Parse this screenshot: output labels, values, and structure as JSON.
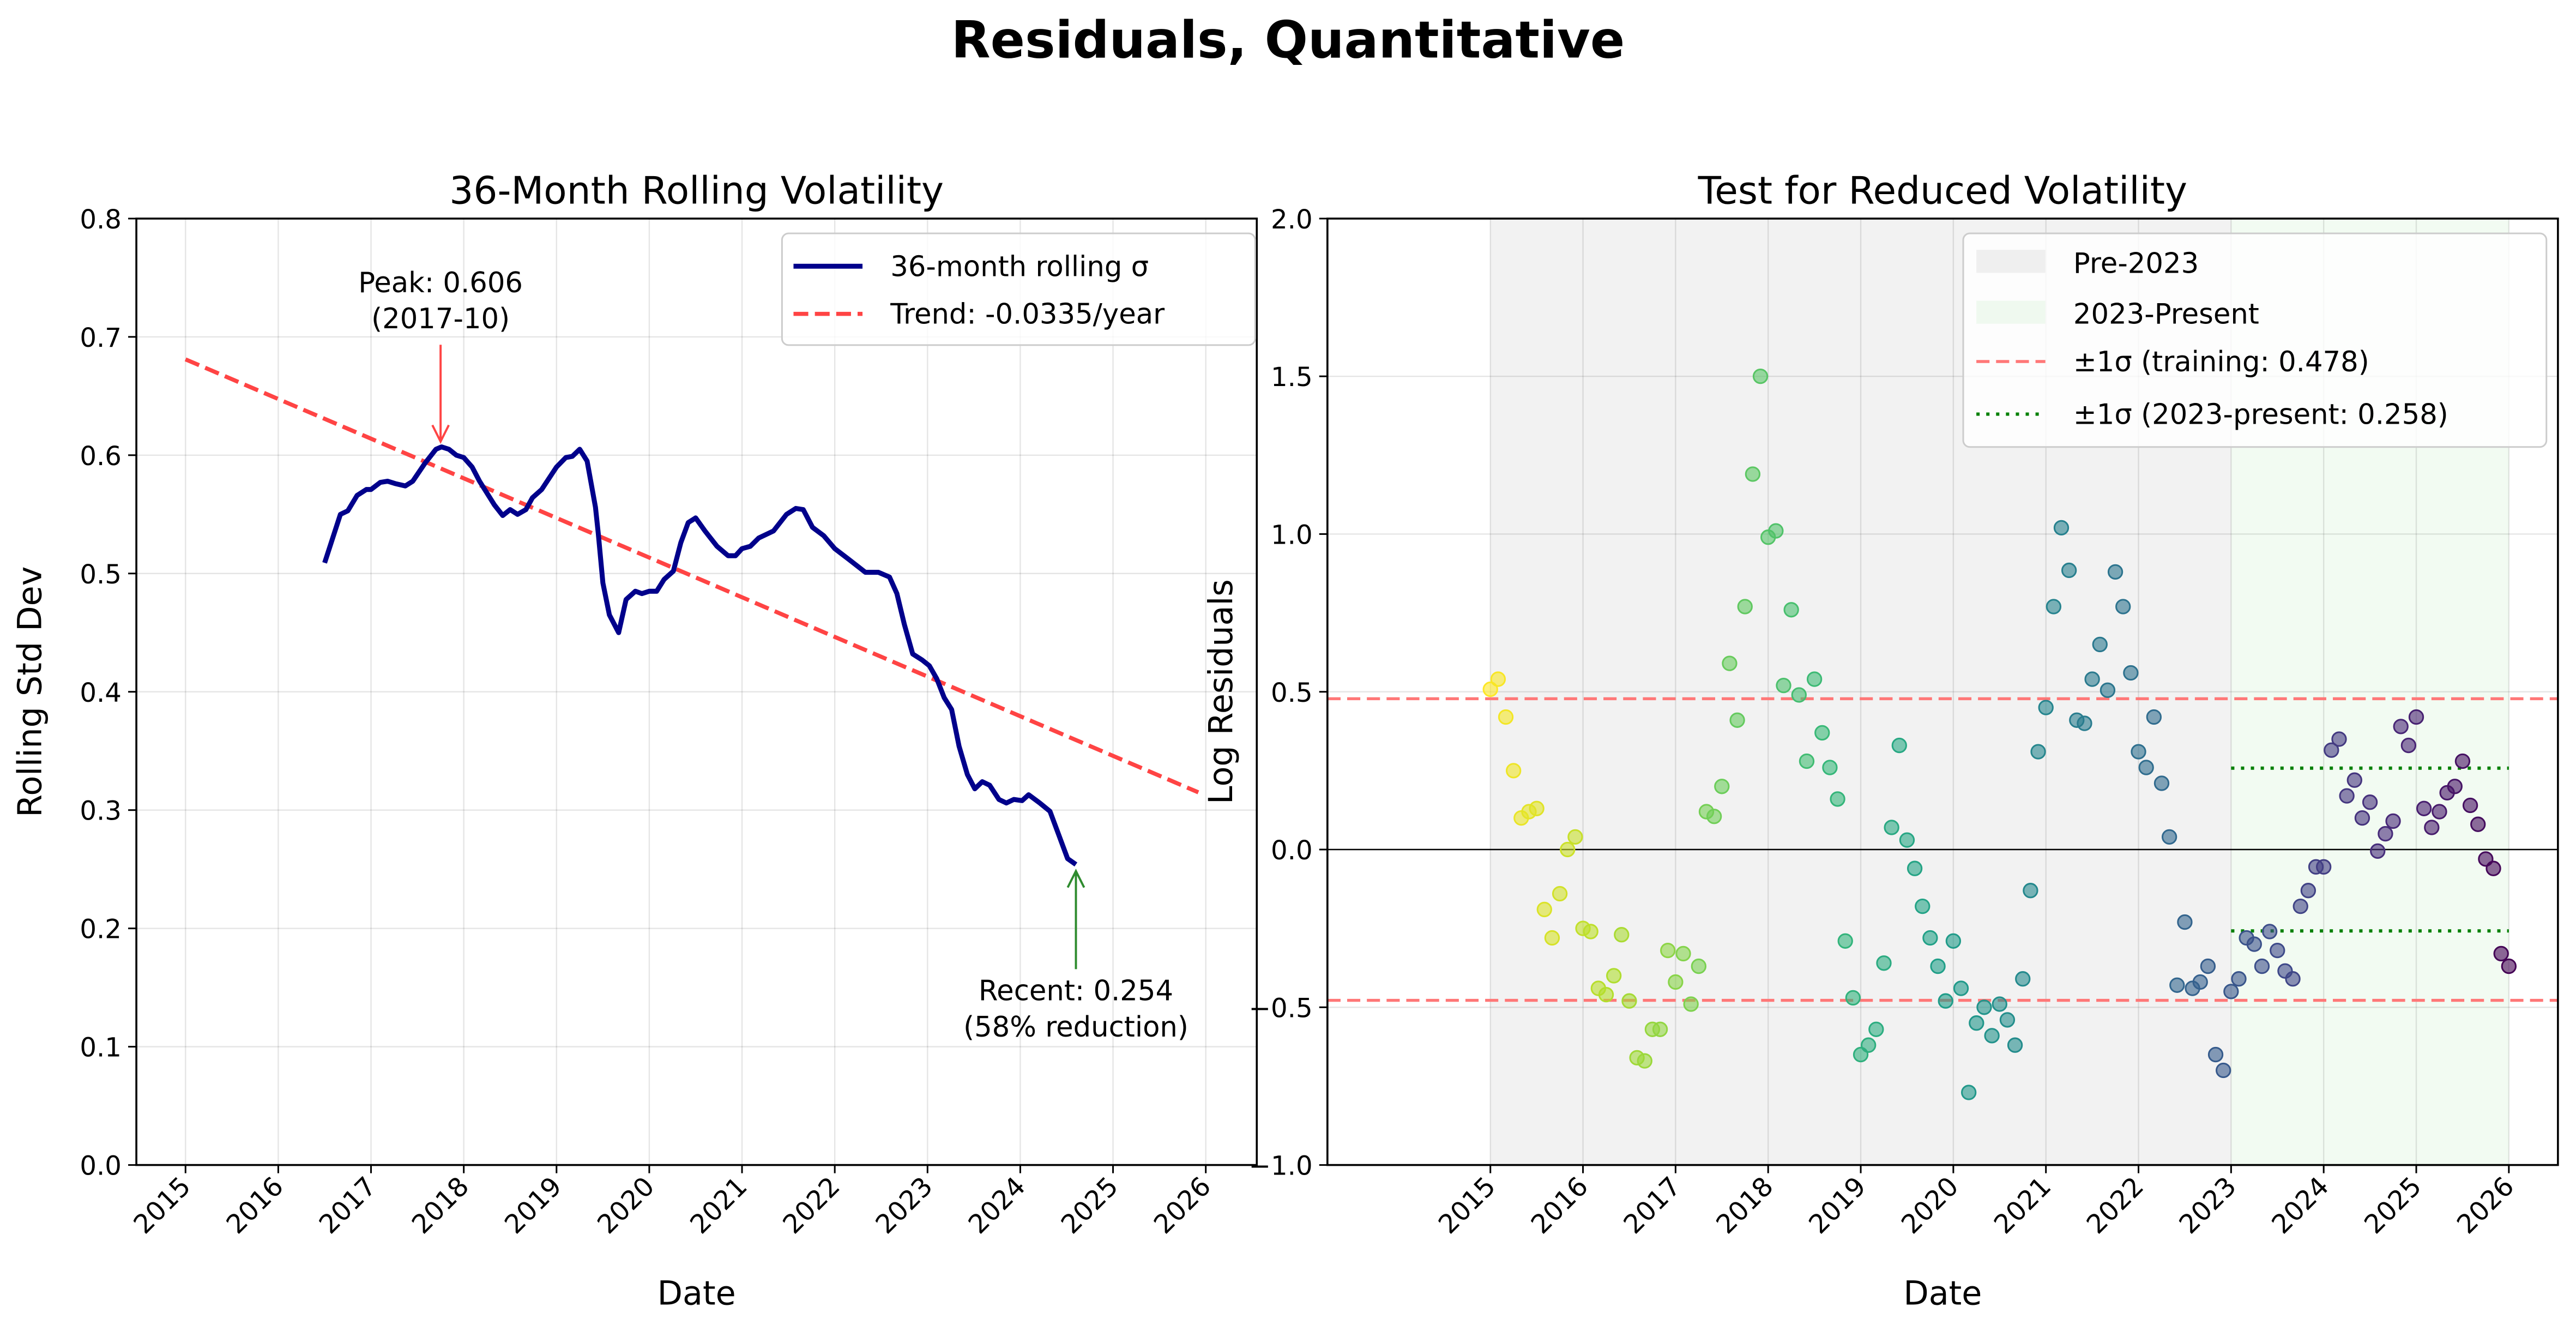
{
  "suptitle": "Residuals, Quantitative",
  "chart_data": [
    {
      "type": "line",
      "title": "36-Month Rolling Volatility",
      "xlabel": "Date",
      "ylabel": "Rolling Std Dev",
      "xlim": [
        2014.47,
        2026.55
      ],
      "ylim": [
        0,
        0.8
      ],
      "xticks": [
        "2015",
        "2016",
        "2017",
        "2018",
        "2019",
        "2020",
        "2021",
        "2022",
        "2023",
        "2024",
        "2025",
        "2026"
      ],
      "yticks": [
        "0.0",
        "0.1",
        "0.2",
        "0.3",
        "0.4",
        "0.5",
        "0.6",
        "0.7",
        "0.8"
      ],
      "grid": true,
      "legend_position": "top-right",
      "series": [
        {
          "name": "36-month rolling σ",
          "color": "#00008b",
          "x": [
            2016.5,
            2016.67,
            2016.75,
            2016.85,
            2016.95,
            2017.0,
            2017.1,
            2017.18,
            2017.26,
            2017.37,
            2017.45,
            2017.58,
            2017.7,
            2017.76,
            2017.84,
            2017.92,
            2018.0,
            2018.09,
            2018.17,
            2018.33,
            2018.42,
            2018.5,
            2018.58,
            2018.67,
            2018.74,
            2018.84,
            2019.0,
            2019.1,
            2019.17,
            2019.25,
            2019.33,
            2019.42,
            2019.45,
            2019.5,
            2019.57,
            2019.67,
            2019.75,
            2019.85,
            2019.92,
            2020.0,
            2020.08,
            2020.16,
            2020.26,
            2020.34,
            2020.42,
            2020.5,
            2020.6,
            2020.73,
            2020.85,
            2020.93,
            2021.0,
            2021.09,
            2021.18,
            2021.34,
            2021.48,
            2021.58,
            2021.66,
            2021.76,
            2021.88,
            2022.0,
            2022.15,
            2022.33,
            2022.47,
            2022.59,
            2022.67,
            2022.75,
            2022.84,
            2022.94,
            2023.02,
            2023.1,
            2023.18,
            2023.26,
            2023.34,
            2023.43,
            2023.51,
            2023.59,
            2023.67,
            2023.77,
            2023.85,
            2023.93,
            2024.02,
            2024.09,
            2024.21,
            2024.32,
            2024.42,
            2024.51,
            2024.6
          ],
          "y": [
            0.509,
            0.55,
            0.553,
            0.566,
            0.571,
            0.571,
            0.577,
            0.578,
            0.576,
            0.574,
            0.578,
            0.593,
            0.605,
            0.607,
            0.605,
            0.6,
            0.598,
            0.59,
            0.578,
            0.558,
            0.549,
            0.554,
            0.55,
            0.554,
            0.564,
            0.571,
            0.59,
            0.598,
            0.599,
            0.605,
            0.595,
            0.556,
            0.534,
            0.492,
            0.465,
            0.45,
            0.478,
            0.485,
            0.483,
            0.485,
            0.485,
            0.495,
            0.502,
            0.526,
            0.543,
            0.547,
            0.536,
            0.523,
            0.515,
            0.515,
            0.521,
            0.523,
            0.53,
            0.536,
            0.55,
            0.555,
            0.554,
            0.539,
            0.532,
            0.521,
            0.512,
            0.501,
            0.501,
            0.497,
            0.483,
            0.457,
            0.432,
            0.427,
            0.422,
            0.411,
            0.395,
            0.385,
            0.354,
            0.33,
            0.318,
            0.324,
            0.321,
            0.309,
            0.306,
            0.309,
            0.308,
            0.313,
            0.306,
            0.299,
            0.278,
            0.259,
            0.254
          ]
        },
        {
          "name": "Trend: -0.0335/year",
          "color": "#ff4444",
          "style": "dashed",
          "x": [
            2015.0,
            2025.92
          ],
          "y": [
            0.681,
            0.315
          ]
        }
      ],
      "annotations": [
        {
          "text": [
            "Peak: 0.606",
            "(2017-10)"
          ],
          "x": 2017.75,
          "y": 0.606,
          "text_y": 0.71,
          "color": "#ff4444"
        },
        {
          "text": [
            "Recent: 0.254",
            "(58% reduction)"
          ],
          "x": 2024.6,
          "y": 0.254,
          "text_y": 0.11,
          "color": "#2e8b2e"
        }
      ]
    },
    {
      "type": "scatter",
      "title": "Test for Reduced Volatility",
      "xlabel": "Date",
      "ylabel": "Log Residuals",
      "xlim": [
        2013.24,
        2026.53
      ],
      "ylim": [
        -1.0,
        2.0
      ],
      "xticks": [
        "2015",
        "2016",
        "2017",
        "2018",
        "2019",
        "2020",
        "2021",
        "2022",
        "2023",
        "2024",
        "2025",
        "2026"
      ],
      "yticks": [
        "−1.0",
        "−0.5",
        "0.0",
        "0.5",
        "1.0",
        "1.5",
        "2.0"
      ],
      "grid": true,
      "legend_position": "top-right",
      "colormap": "viridis_r",
      "start": "2015-01",
      "frequency": "monthly",
      "values": [
        0.508,
        0.54,
        0.42,
        0.25,
        0.1,
        0.12,
        0.13,
        -0.19,
        -0.28,
        -0.14,
        0.0,
        0.04,
        -0.25,
        -0.26,
        -0.44,
        -0.46,
        -0.4,
        -0.27,
        -0.48,
        -0.66,
        -0.67,
        -0.57,
        -0.57,
        -0.32,
        -0.42,
        -0.33,
        -0.49,
        -0.37,
        0.12,
        0.105,
        0.2,
        0.59,
        0.41,
        0.77,
        1.19,
        1.5,
        0.99,
        1.01,
        0.52,
        0.76,
        0.49,
        0.28,
        0.54,
        0.37,
        0.26,
        0.16,
        -0.29,
        -0.47,
        -0.65,
        -0.62,
        -0.57,
        -0.36,
        0.07,
        0.33,
        0.03,
        -0.06,
        -0.18,
        -0.28,
        -0.37,
        -0.48,
        -0.29,
        -0.44,
        -0.77,
        -0.55,
        -0.5,
        -0.59,
        -0.49,
        -0.54,
        -0.62,
        -0.41,
        -0.13,
        0.31,
        0.45,
        0.77,
        1.02,
        0.885,
        0.41,
        0.4,
        0.54,
        0.65,
        0.505,
        0.88,
        0.77,
        0.56,
        0.31,
        0.26,
        0.42,
        0.21,
        0.04,
        -0.43,
        -0.23,
        -0.44,
        -0.42,
        -0.37,
        -0.65,
        -0.7,
        -0.45,
        -0.41,
        -0.28,
        -0.3,
        -0.37,
        -0.26,
        -0.32,
        -0.385,
        -0.41,
        -0.18,
        -0.13,
        -0.055,
        -0.055,
        0.315,
        0.35,
        0.17,
        0.22,
        0.1,
        0.15,
        -0.005,
        0.05,
        0.09,
        0.39,
        0.33,
        0.42,
        0.13,
        0.07,
        0.12,
        0.18,
        0.2,
        0.28,
        0.14,
        0.08,
        -0.03,
        -0.06,
        -0.33,
        -0.37
      ],
      "regions": [
        {
          "name": "Pre-2023",
          "from": 2015,
          "to": 2023,
          "color": "#d9d9d9"
        },
        {
          "name": "2023-Present",
          "from": 2023,
          "to": 2026,
          "color": "#e6f7e6"
        }
      ],
      "lines": [
        {
          "name": "±1σ (training: 0.478)",
          "value": 0.478,
          "from": 2013.24,
          "to": 2026.53,
          "color": "#ff7777",
          "style": "dashed"
        },
        {
          "name": "±1σ (2023-present: 0.258)",
          "value": 0.258,
          "from": 2023,
          "to": 2026,
          "color": "#008000",
          "style": "dotted"
        }
      ]
    }
  ]
}
